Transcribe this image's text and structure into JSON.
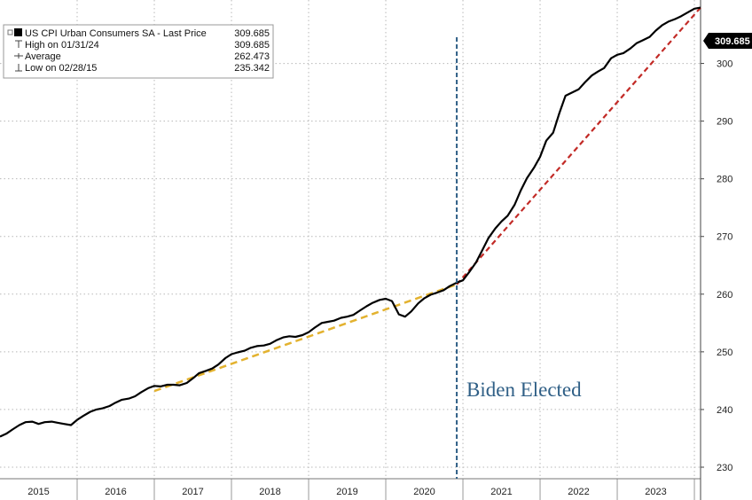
{
  "chart_data": {
    "type": "line",
    "legend": {
      "series_label": "US CPI Urban Consumers SA - Last Price",
      "series_value": "309.685",
      "high_label": "High on 01/31/24",
      "high_value": "309.685",
      "avg_label": "Average",
      "avg_value": "262.473",
      "low_label": "Low on 02/28/15",
      "low_value": "235.342",
      "placement": "top-left"
    },
    "annotation": "Biden Elected",
    "last_value_label": "309.685",
    "x_tick_labels": [
      "2015",
      "2016",
      "2017",
      "2018",
      "2019",
      "2020",
      "2021",
      "2022",
      "2023"
    ],
    "y_tick_labels": [
      "230",
      "240",
      "250",
      "260",
      "270",
      "280",
      "290",
      "300"
    ],
    "xlim": [
      2015.0,
      2024.08
    ],
    "ylim": [
      228,
      311
    ],
    "grid": true,
    "colors": {
      "line": "#000000",
      "trend_pre": "#e3b22f",
      "trend_post": "#c22a26",
      "vline": "#2f5f86",
      "badge": "#000000"
    },
    "series": [
      {
        "name": "US CPI Urban Consumers SA",
        "x": [
          2015.0,
          2015.08,
          2015.17,
          2015.25,
          2015.33,
          2015.42,
          2015.5,
          2015.58,
          2015.67,
          2015.75,
          2015.83,
          2015.92,
          2016.0,
          2016.08,
          2016.17,
          2016.25,
          2016.33,
          2016.42,
          2016.5,
          2016.58,
          2016.67,
          2016.75,
          2016.83,
          2016.92,
          2017.0,
          2017.08,
          2017.17,
          2017.25,
          2017.33,
          2017.42,
          2017.5,
          2017.58,
          2017.67,
          2017.75,
          2017.83,
          2017.92,
          2018.0,
          2018.08,
          2018.17,
          2018.25,
          2018.33,
          2018.42,
          2018.5,
          2018.58,
          2018.67,
          2018.75,
          2018.83,
          2018.92,
          2019.0,
          2019.08,
          2019.17,
          2019.25,
          2019.33,
          2019.42,
          2019.5,
          2019.58,
          2019.67,
          2019.75,
          2019.83,
          2019.92,
          2020.0,
          2020.08,
          2020.17,
          2020.25,
          2020.33,
          2020.42,
          2020.5,
          2020.58,
          2020.67,
          2020.75,
          2020.83,
          2020.92,
          2021.0,
          2021.08,
          2021.17,
          2021.25,
          2021.33,
          2021.42,
          2021.5,
          2021.58,
          2021.67,
          2021.75,
          2021.83,
          2021.92,
          2022.0,
          2022.08,
          2022.17,
          2022.25,
          2022.33,
          2022.42,
          2022.5,
          2022.58,
          2022.67,
          2022.75,
          2022.83,
          2022.92,
          2023.0,
          2023.08,
          2023.17,
          2023.25,
          2023.33,
          2023.42,
          2023.5,
          2023.58,
          2023.67,
          2023.75,
          2023.83,
          2023.92,
          2024.0,
          2024.08
        ],
        "values": [
          235.3,
          235.8,
          236.6,
          237.3,
          237.8,
          237.9,
          237.5,
          237.8,
          237.9,
          237.7,
          237.5,
          237.3,
          238.2,
          238.9,
          239.6,
          240.0,
          240.2,
          240.6,
          241.2,
          241.7,
          241.9,
          242.3,
          243.0,
          243.7,
          244.1,
          244.0,
          244.3,
          244.3,
          244.2,
          244.6,
          245.4,
          246.3,
          246.7,
          247.1,
          247.8,
          248.9,
          249.6,
          249.9,
          250.2,
          250.7,
          251.0,
          251.1,
          251.4,
          252.0,
          252.5,
          252.7,
          252.6,
          252.9,
          253.4,
          254.2,
          255.0,
          255.2,
          255.4,
          255.9,
          256.1,
          256.4,
          257.2,
          257.9,
          258.5,
          259.0,
          259.2,
          258.8,
          256.5,
          256.1,
          257.0,
          258.4,
          259.3,
          259.9,
          260.3,
          260.7,
          261.4,
          262.0,
          262.4,
          263.8,
          265.5,
          267.6,
          269.7,
          271.4,
          272.6,
          273.6,
          275.5,
          278.0,
          280.1,
          281.9,
          283.8,
          286.6,
          288.0,
          291.4,
          294.4,
          295.0,
          295.5,
          296.7,
          297.9,
          298.6,
          299.2,
          300.9,
          301.5,
          301.8,
          302.6,
          303.5,
          304.0,
          304.6,
          305.7,
          306.6,
          307.3,
          307.7,
          308.2,
          308.9,
          309.5,
          309.685
        ]
      }
    ],
    "trend_pre": {
      "x": [
        2017.0,
        2020.92
      ],
      "values": [
        243.2,
        261.7
      ]
    },
    "trend_post": {
      "x": [
        2020.92,
        2024.08
      ],
      "values": [
        261.7,
        309.685
      ]
    },
    "vline_x": 2020.92
  }
}
